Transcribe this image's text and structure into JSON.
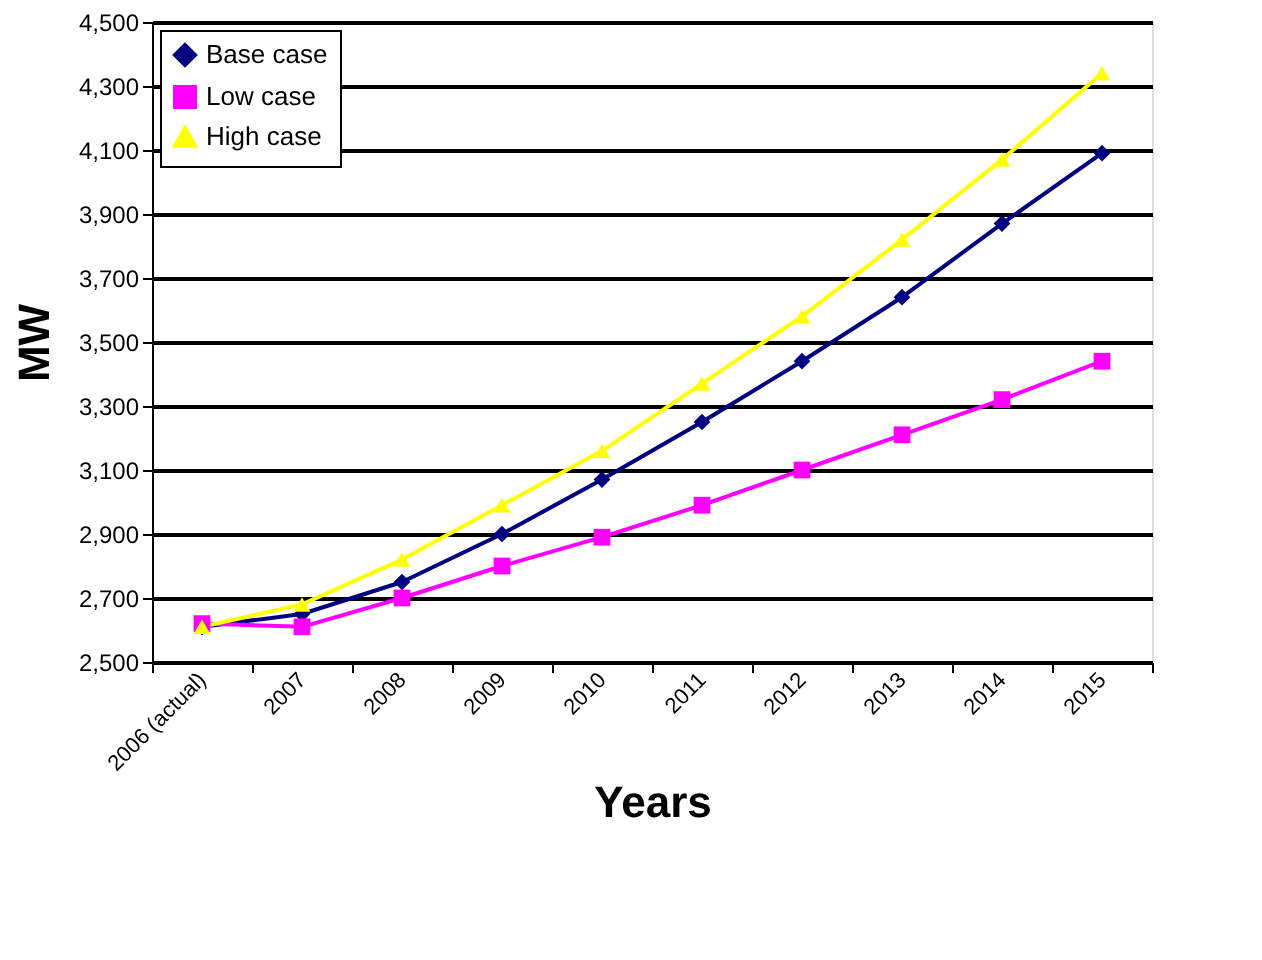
{
  "chart_data": {
    "type": "line",
    "xlabel": "Years",
    "ylabel": "MW",
    "categories": [
      "2006 (actual)",
      "2007",
      "2008",
      "2009",
      "2010",
      "2011",
      "2012",
      "2013",
      "2014",
      "2015"
    ],
    "series": [
      {
        "name": "Base case",
        "color": "#000080",
        "marker": "diamond",
        "values": [
          2610,
          2650,
          2750,
          2900,
          3070,
          3250,
          3440,
          3640,
          3870,
          4090
        ]
      },
      {
        "name": "Low case",
        "color": "#ff00ff",
        "marker": "square",
        "values": [
          2620,
          2610,
          2700,
          2800,
          2890,
          2990,
          3100,
          3210,
          3320,
          3440
        ]
      },
      {
        "name": "High case",
        "color": "#ffff00",
        "marker": "triangle",
        "values": [
          2610,
          2680,
          2820,
          2990,
          3160,
          3370,
          3580,
          3820,
          4070,
          4340
        ]
      }
    ],
    "ylim": [
      2500,
      4500
    ],
    "yticks": [
      {
        "value": 2500,
        "label": "2,500"
      },
      {
        "value": 2700,
        "label": "2,700"
      },
      {
        "value": 2900,
        "label": "2,900"
      },
      {
        "value": 3100,
        "label": "3,100"
      },
      {
        "value": 3300,
        "label": "3,300"
      },
      {
        "value": 3500,
        "label": "3,500"
      },
      {
        "value": 3700,
        "label": "3,700"
      },
      {
        "value": 3900,
        "label": "3,900"
      },
      {
        "value": 4100,
        "label": "4,100"
      },
      {
        "value": 4300,
        "label": "4,300"
      },
      {
        "value": 4500,
        "label": "4,500"
      }
    ],
    "grid": "y",
    "legend": "top left",
    "line_style": "solid"
  }
}
